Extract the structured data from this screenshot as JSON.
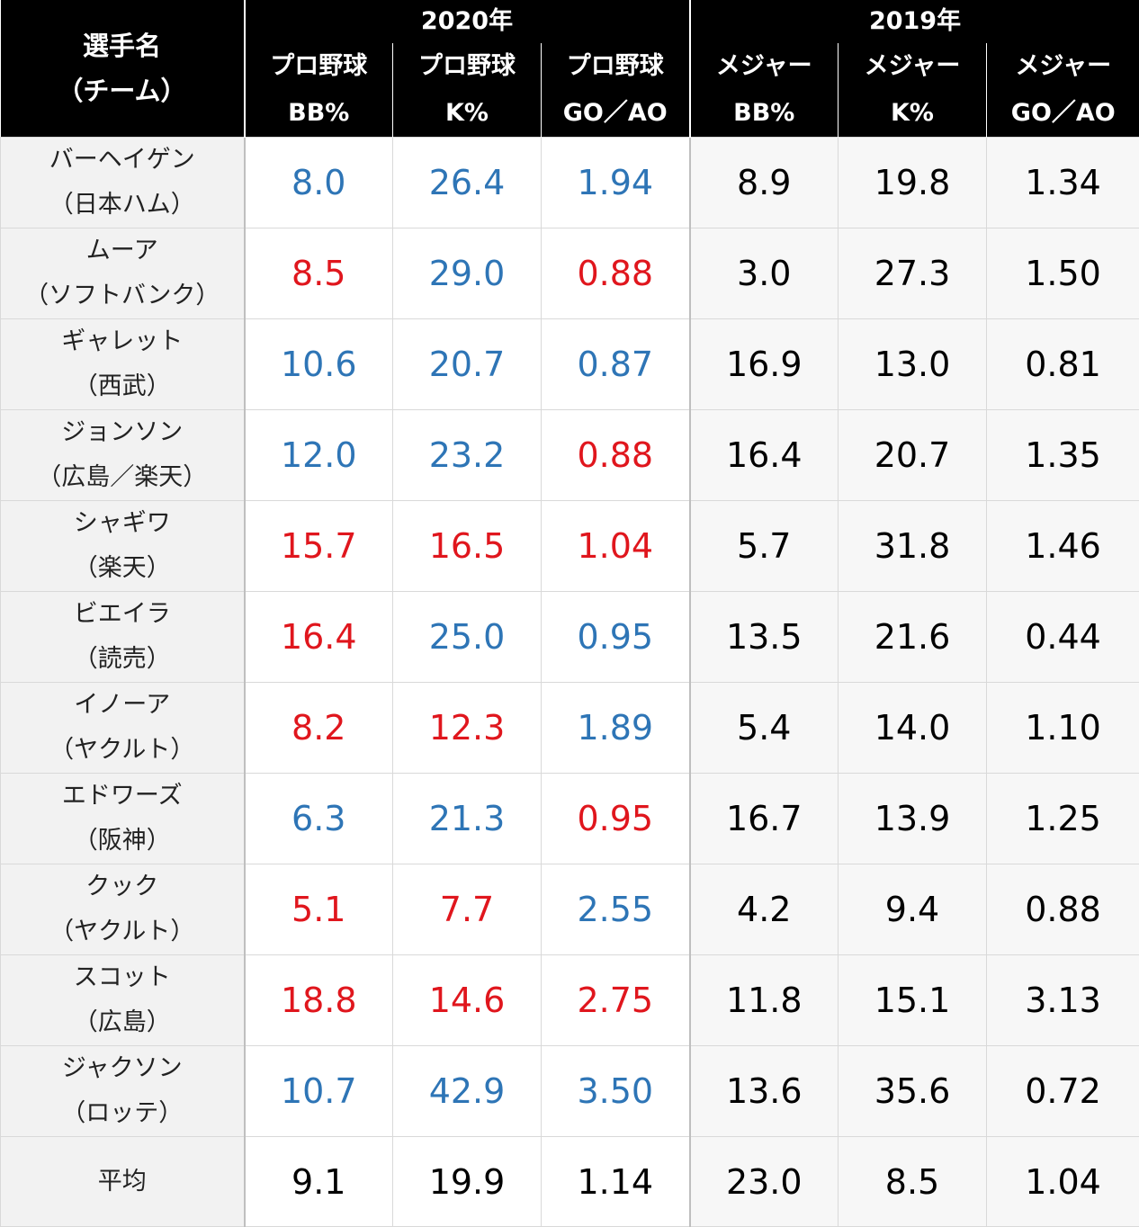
{
  "header": {
    "name_line1": "選手名",
    "name_line2": "（チーム）",
    "year_2020": "2020年",
    "year_2019": "2019年",
    "columns": [
      {
        "line1": "プロ野球",
        "line2": "BB%"
      },
      {
        "line1": "プロ野球",
        "line2": "K%"
      },
      {
        "line1": "プロ野球",
        "line2": "GO／AO"
      },
      {
        "line1": "メジャー",
        "line2": "BB%"
      },
      {
        "line1": "メジャー",
        "line2": "K%"
      },
      {
        "line1": "メジャー",
        "line2": "GO／AO"
      }
    ]
  },
  "colors": {
    "blue": "#2e75b6",
    "red": "#e0161d",
    "header_bg": "#000000"
  },
  "rows": [
    {
      "name": "バーヘイゲン",
      "team": "（日本ハム）",
      "npb_bb": "8.0",
      "npb_k": "26.4",
      "npb_goao": "1.94",
      "mlb_bb": "8.9",
      "mlb_k": "19.8",
      "mlb_goao": "1.34",
      "npb_bb_color": "blue",
      "npb_k_color": "blue",
      "npb_goao_color": "blue"
    },
    {
      "name": "ムーア",
      "team": "（ソフトバンク）",
      "npb_bb": "8.5",
      "npb_k": "29.0",
      "npb_goao": "0.88",
      "mlb_bb": "3.0",
      "mlb_k": "27.3",
      "mlb_goao": "1.50",
      "npb_bb_color": "red",
      "npb_k_color": "blue",
      "npb_goao_color": "red"
    },
    {
      "name": "ギャレット",
      "team": "（西武）",
      "npb_bb": "10.6",
      "npb_k": "20.7",
      "npb_goao": "0.87",
      "mlb_bb": "16.9",
      "mlb_k": "13.0",
      "mlb_goao": "0.81",
      "npb_bb_color": "blue",
      "npb_k_color": "blue",
      "npb_goao_color": "blue"
    },
    {
      "name": "ジョンソン",
      "team": "（広島／楽天）",
      "npb_bb": "12.0",
      "npb_k": "23.2",
      "npb_goao": "0.88",
      "mlb_bb": "16.4",
      "mlb_k": "20.7",
      "mlb_goao": "1.35",
      "npb_bb_color": "blue",
      "npb_k_color": "blue",
      "npb_goao_color": "red"
    },
    {
      "name": "シャギワ",
      "team": "（楽天）",
      "npb_bb": "15.7",
      "npb_k": "16.5",
      "npb_goao": "1.04",
      "mlb_bb": "5.7",
      "mlb_k": "31.8",
      "mlb_goao": "1.46",
      "npb_bb_color": "red",
      "npb_k_color": "red",
      "npb_goao_color": "red"
    },
    {
      "name": "ビエイラ",
      "team": "（読売）",
      "npb_bb": "16.4",
      "npb_k": "25.0",
      "npb_goao": "0.95",
      "mlb_bb": "13.5",
      "mlb_k": "21.6",
      "mlb_goao": "0.44",
      "npb_bb_color": "red",
      "npb_k_color": "blue",
      "npb_goao_color": "blue"
    },
    {
      "name": "イノーア",
      "team": "（ヤクルト）",
      "npb_bb": "8.2",
      "npb_k": "12.3",
      "npb_goao": "1.89",
      "mlb_bb": "5.4",
      "mlb_k": "14.0",
      "mlb_goao": "1.10",
      "npb_bb_color": "red",
      "npb_k_color": "red",
      "npb_goao_color": "blue"
    },
    {
      "name": "エドワーズ",
      "team": "（阪神）",
      "npb_bb": "6.3",
      "npb_k": "21.3",
      "npb_goao": "0.95",
      "mlb_bb": "16.7",
      "mlb_k": "13.9",
      "mlb_goao": "1.25",
      "npb_bb_color": "blue",
      "npb_k_color": "blue",
      "npb_goao_color": "red"
    },
    {
      "name": "クック",
      "team": "（ヤクルト）",
      "npb_bb": "5.1",
      "npb_k": "7.7",
      "npb_goao": "2.55",
      "mlb_bb": "4.2",
      "mlb_k": "9.4",
      "mlb_goao": "0.88",
      "npb_bb_color": "red",
      "npb_k_color": "red",
      "npb_goao_color": "blue"
    },
    {
      "name": "スコット",
      "team": "（広島）",
      "npb_bb": "18.8",
      "npb_k": "14.6",
      "npb_goao": "2.75",
      "mlb_bb": "11.8",
      "mlb_k": "15.1",
      "mlb_goao": "3.13",
      "npb_bb_color": "red",
      "npb_k_color": "red",
      "npb_goao_color": "red"
    },
    {
      "name": "ジャクソン",
      "team": "（ロッテ）",
      "npb_bb": "10.7",
      "npb_k": "42.9",
      "npb_goao": "3.50",
      "mlb_bb": "13.6",
      "mlb_k": "35.6",
      "mlb_goao": "0.72",
      "npb_bb_color": "blue",
      "npb_k_color": "blue",
      "npb_goao_color": "blue"
    }
  ],
  "average": {
    "label": "平均",
    "npb_bb": "9.1",
    "npb_k": "19.9",
    "npb_goao": "1.14",
    "mlb_bb": "23.0",
    "mlb_k": "8.5",
    "mlb_goao": "1.04"
  }
}
